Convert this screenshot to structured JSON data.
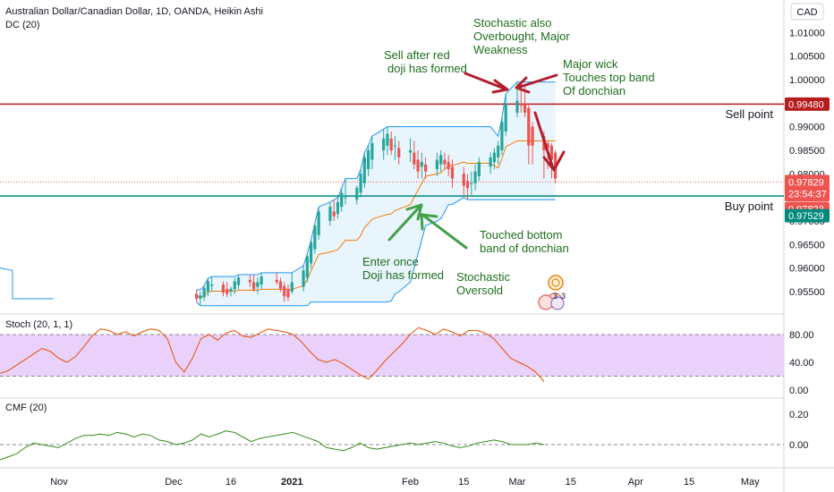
{
  "header": {
    "title": "Australian Dollar/Canadian Dollar, 1D, OANDA, Heikin Ashi",
    "indicator": "DC (20)",
    "currency": "CAD",
    "stoch_title": "Stoch (20, 1, 1)",
    "cmf_title": "CMF (20)"
  },
  "annotations": {
    "stoch_ob_line1": "Stochastic also",
    "stoch_ob_line2": "Overbought, Major",
    "stoch_ob_line3": "Weakness",
    "sell_doji_line1": "Sell after red",
    "sell_doji_line2": "doji has formed",
    "wick_line1": "Major wick",
    "wick_line2": "Touches top band",
    "wick_line3": "Of donchian",
    "sell_point": "Sell point",
    "buy_point": "Buy point",
    "touched_line1": "Touched bottom",
    "touched_line2": "band of donchian",
    "enter_line1": "Enter once",
    "enter_line2": "Doji has formed",
    "oversold_line1": "Stochastic",
    "oversold_line2": "Oversold"
  },
  "event_badges": {
    "count_a": "3",
    "count_b": "3"
  },
  "colors": {
    "up": "#26a69a",
    "down": "#ef5350",
    "sell_line": "#b71c1c",
    "buy_line": "#00897b",
    "donchian_band": "#2196f3",
    "donchian_basis": "#f57c00",
    "donchian_fill": "#e3f2fd",
    "stoch_line": "#e65100",
    "stoch_fill": "#ead1fb",
    "cmf_line": "#3a8a1a",
    "annotation_green": "#1e6e1e",
    "arrow_red": "#b0202f",
    "arrow_green": "#43a047"
  },
  "chart_data": [
    {
      "type": "candlestick",
      "panel": "price",
      "y_ticks": [
        "0.95500",
        "0.96000",
        "0.96500",
        "0.97000",
        "0.97500",
        "0.98000",
        "0.98500",
        "0.99000",
        "0.99500",
        "1.00000",
        "1.00500",
        "1.01000"
      ],
      "ylim": [
        0.9505,
        1.0145
      ],
      "x_ticks": [
        "Nov",
        "Dec",
        "16",
        "2021",
        "Feb",
        "15",
        "Mar",
        "15",
        "Apr",
        "15",
        "May"
      ],
      "price_tags": {
        "sell_level": "0.99480",
        "last_price": "0.97829",
        "countdown": "23:54:37",
        "dc_lower": "0.97823",
        "buy_level": "0.97529"
      },
      "levels": {
        "sell": 0.9948,
        "buy": 0.97529,
        "last": 0.97829
      },
      "candles": [
        {
          "date": "2020-12-07",
          "o": 0.9545,
          "h": 0.9554,
          "l": 0.9528,
          "c": 0.9535
        },
        {
          "date": "2020-12-08",
          "o": 0.9535,
          "h": 0.955,
          "l": 0.952,
          "c": 0.9542
        },
        {
          "date": "2020-12-09",
          "o": 0.9538,
          "h": 0.9562,
          "l": 0.953,
          "c": 0.9558
        },
        {
          "date": "2020-12-10",
          "o": 0.955,
          "h": 0.9578,
          "l": 0.954,
          "c": 0.9572
        },
        {
          "date": "2020-12-11",
          "o": 0.9562,
          "h": 0.9582,
          "l": 0.955,
          "c": 0.9565
        },
        {
          "date": "2020-12-14",
          "o": 0.9565,
          "h": 0.9572,
          "l": 0.954,
          "c": 0.9548
        },
        {
          "date": "2020-12-15",
          "o": 0.9556,
          "h": 0.957,
          "l": 0.9538,
          "c": 0.9545
        },
        {
          "date": "2020-12-16",
          "o": 0.955,
          "h": 0.956,
          "l": 0.954,
          "c": 0.9556
        },
        {
          "date": "2020-12-17",
          "o": 0.9555,
          "h": 0.958,
          "l": 0.9545,
          "c": 0.9572
        },
        {
          "date": "2020-12-18",
          "o": 0.9564,
          "h": 0.9586,
          "l": 0.9555,
          "c": 0.958
        },
        {
          "date": "2020-12-21",
          "o": 0.9575,
          "h": 0.9585,
          "l": 0.956,
          "c": 0.957
        },
        {
          "date": "2020-12-22",
          "o": 0.957,
          "h": 0.9585,
          "l": 0.955,
          "c": 0.9555
        },
        {
          "date": "2020-12-23",
          "o": 0.956,
          "h": 0.958,
          "l": 0.9545,
          "c": 0.957
        },
        {
          "date": "2020-12-24",
          "o": 0.9565,
          "h": 0.959,
          "l": 0.9555,
          "c": 0.9582
        },
        {
          "date": "2020-12-28",
          "o": 0.9575,
          "h": 0.959,
          "l": 0.9565,
          "c": 0.957
        },
        {
          "date": "2020-12-29",
          "o": 0.9572,
          "h": 0.958,
          "l": 0.955,
          "c": 0.9556
        },
        {
          "date": "2020-12-30",
          "o": 0.9562,
          "h": 0.957,
          "l": 0.9528,
          "c": 0.954
        },
        {
          "date": "2020-12-31",
          "o": 0.9555,
          "h": 0.9565,
          "l": 0.953,
          "c": 0.9538
        },
        {
          "date": "2021-01-01",
          "o": 0.955,
          "h": 0.959,
          "l": 0.9545,
          "c": 0.957
        },
        {
          "date": "2021-01-04",
          "o": 0.956,
          "h": 0.9605,
          "l": 0.955,
          "c": 0.9595
        },
        {
          "date": "2021-01-05",
          "o": 0.958,
          "h": 0.963,
          "l": 0.957,
          "c": 0.9625
        },
        {
          "date": "2021-01-06",
          "o": 0.961,
          "h": 0.966,
          "l": 0.96,
          "c": 0.9655
        },
        {
          "date": "2021-01-07",
          "o": 0.964,
          "h": 0.9695,
          "l": 0.963,
          "c": 0.969
        },
        {
          "date": "2021-01-08",
          "o": 0.967,
          "h": 0.973,
          "l": 0.966,
          "c": 0.972
        },
        {
          "date": "2021-01-11",
          "o": 0.97,
          "h": 0.974,
          "l": 0.969,
          "c": 0.973
        },
        {
          "date": "2021-01-12",
          "o": 0.972,
          "h": 0.9745,
          "l": 0.97,
          "c": 0.971
        },
        {
          "date": "2021-01-13",
          "o": 0.9715,
          "h": 0.975,
          "l": 0.9705,
          "c": 0.974
        },
        {
          "date": "2021-01-14",
          "o": 0.973,
          "h": 0.977,
          "l": 0.972,
          "c": 0.976
        },
        {
          "date": "2021-01-15",
          "o": 0.975,
          "h": 0.979,
          "l": 0.9735,
          "c": 0.975
        },
        {
          "date": "2021-01-18",
          "o": 0.9745,
          "h": 0.9775,
          "l": 0.9735,
          "c": 0.977
        },
        {
          "date": "2021-01-19",
          "o": 0.976,
          "h": 0.981,
          "l": 0.975,
          "c": 0.98
        },
        {
          "date": "2021-01-20",
          "o": 0.978,
          "h": 0.9845,
          "l": 0.977,
          "c": 0.9835
        },
        {
          "date": "2021-01-21",
          "o": 0.981,
          "h": 0.986,
          "l": 0.9795,
          "c": 0.985
        },
        {
          "date": "2021-01-22",
          "o": 0.983,
          "h": 0.988,
          "l": 0.981,
          "c": 0.9865
        },
        {
          "date": "2021-01-25",
          "o": 0.985,
          "h": 0.9895,
          "l": 0.983,
          "c": 0.9875
        },
        {
          "date": "2021-01-26",
          "o": 0.986,
          "h": 0.99,
          "l": 0.984,
          "c": 0.9885
        },
        {
          "date": "2021-01-27",
          "o": 0.9875,
          "h": 0.989,
          "l": 0.984,
          "c": 0.985
        },
        {
          "date": "2021-01-28",
          "o": 0.986,
          "h": 0.988,
          "l": 0.983,
          "c": 0.986
        },
        {
          "date": "2021-01-29",
          "o": 0.9855,
          "h": 0.987,
          "l": 0.982,
          "c": 0.9835
        },
        {
          "date": "2021-02-01",
          "o": 0.9845,
          "h": 0.9875,
          "l": 0.9825,
          "c": 0.985
        },
        {
          "date": "2021-02-02",
          "o": 0.9845,
          "h": 0.987,
          "l": 0.981,
          "c": 0.982
        },
        {
          "date": "2021-02-03",
          "o": 0.983,
          "h": 0.985,
          "l": 0.979,
          "c": 0.9805
        },
        {
          "date": "2021-02-04",
          "o": 0.9815,
          "h": 0.9845,
          "l": 0.979,
          "c": 0.9825
        },
        {
          "date": "2021-02-05",
          "o": 0.982,
          "h": 0.9835,
          "l": 0.979,
          "c": 0.9805
        },
        {
          "date": "2021-02-08",
          "o": 0.981,
          "h": 0.9845,
          "l": 0.9795,
          "c": 0.983
        },
        {
          "date": "2021-02-09",
          "o": 0.982,
          "h": 0.985,
          "l": 0.9805,
          "c": 0.984
        },
        {
          "date": "2021-02-10",
          "o": 0.983,
          "h": 0.9845,
          "l": 0.981,
          "c": 0.982
        },
        {
          "date": "2021-02-11",
          "o": 0.9825,
          "h": 0.984,
          "l": 0.9795,
          "c": 0.981
        },
        {
          "date": "2021-02-12",
          "o": 0.9815,
          "h": 0.983,
          "l": 0.977,
          "c": 0.979
        },
        {
          "date": "2021-02-15",
          "o": 0.98,
          "h": 0.9815,
          "l": 0.9755,
          "c": 0.9775
        },
        {
          "date": "2021-02-16",
          "o": 0.9785,
          "h": 0.98,
          "l": 0.9745,
          "c": 0.977
        },
        {
          "date": "2021-02-17",
          "o": 0.978,
          "h": 0.9805,
          "l": 0.9755,
          "c": 0.978
        },
        {
          "date": "2021-02-18",
          "o": 0.978,
          "h": 0.982,
          "l": 0.9765,
          "c": 0.9805
        },
        {
          "date": "2021-02-19",
          "o": 0.9795,
          "h": 0.9835,
          "l": 0.9785,
          "c": 0.9825
        },
        {
          "date": "2021-02-22",
          "o": 0.9815,
          "h": 0.9845,
          "l": 0.98,
          "c": 0.9835
        },
        {
          "date": "2021-02-23",
          "o": 0.9825,
          "h": 0.9855,
          "l": 0.981,
          "c": 0.9845
        },
        {
          "date": "2021-02-24",
          "o": 0.9835,
          "h": 0.987,
          "l": 0.982,
          "c": 0.986
        },
        {
          "date": "2021-02-25",
          "o": 0.985,
          "h": 0.992,
          "l": 0.984,
          "c": 0.991
        },
        {
          "date": "2021-02-26",
          "o": 0.989,
          "h": 0.997,
          "l": 0.988,
          "c": 0.995
        },
        {
          "date": "2021-03-01",
          "o": 0.993,
          "h": 0.9995,
          "l": 0.992,
          "c": 0.9955
        },
        {
          "date": "2021-03-02",
          "o": 0.995,
          "h": 0.9995,
          "l": 0.993,
          "c": 0.9945
        },
        {
          "date": "2021-03-03",
          "o": 0.9948,
          "h": 0.999,
          "l": 0.992,
          "c": 0.993
        },
        {
          "date": "2021-03-04",
          "o": 0.994,
          "h": 0.995,
          "l": 0.982,
          "c": 0.986
        },
        {
          "date": "2021-03-05",
          "o": 0.99,
          "h": 0.991,
          "l": 0.982,
          "c": 0.986
        },
        {
          "date": "2021-03-08",
          "o": 0.988,
          "h": 0.989,
          "l": 0.979,
          "c": 0.985
        },
        {
          "date": "2021-03-09",
          "o": 0.9865,
          "h": 0.987,
          "l": 0.981,
          "c": 0.9855
        },
        {
          "date": "2021-03-10",
          "o": 0.986,
          "h": 0.9865,
          "l": 0.979,
          "c": 0.983
        },
        {
          "date": "2021-03-11",
          "o": 0.9845,
          "h": 0.985,
          "l": 0.978,
          "c": 0.979
        }
      ]
    },
    {
      "type": "line",
      "panel": "stochastic",
      "y_ticks": [
        "0.00",
        "40.00",
        "80.00"
      ],
      "ylim": [
        0,
        100
      ],
      "band": [
        20,
        80
      ],
      "series": [
        {
          "values": [
            24,
            28,
            36,
            44,
            52,
            60,
            56,
            46,
            40,
            48,
            62,
            78,
            88,
            86,
            80,
            84,
            78,
            84,
            88,
            86,
            74,
            40,
            26,
            46,
            74,
            80,
            72,
            82,
            86,
            78,
            76,
            82,
            88,
            86,
            84,
            80,
            70,
            56,
            44,
            40,
            44,
            38,
            30,
            22,
            16,
            28,
            42,
            54,
            66,
            80,
            90,
            86,
            80,
            88,
            84,
            78,
            86,
            86,
            82,
            74,
            60,
            46,
            40,
            34,
            26,
            12
          ]
        }
      ]
    },
    {
      "type": "line",
      "panel": "cmf",
      "y_ticks": [
        "0.00",
        "0.20"
      ],
      "ylim": [
        -0.12,
        0.28
      ],
      "series": [
        {
          "values": [
            -0.1,
            -0.08,
            -0.06,
            -0.02,
            0.01,
            0.0,
            -0.01,
            -0.02,
            0.01,
            0.04,
            0.06,
            0.06,
            0.07,
            0.06,
            0.08,
            0.07,
            0.05,
            0.07,
            0.06,
            0.03,
            0.02,
            0.0,
            0.01,
            0.03,
            0.07,
            0.05,
            0.07,
            0.09,
            0.08,
            0.05,
            0.02,
            0.04,
            0.05,
            0.06,
            0.07,
            0.08,
            0.06,
            0.04,
            0.02,
            -0.02,
            -0.03,
            -0.04,
            -0.02,
            0.01,
            -0.02,
            -0.03,
            -0.02,
            -0.01,
            0.0,
            0.01,
            0.0,
            0.01,
            0.02,
            0.01,
            -0.01,
            -0.02,
            -0.01,
            0.01,
            0.02,
            0.03,
            0.02,
            0.0,
            0.0,
            0.0,
            0.01,
            0.0
          ]
        }
      ]
    }
  ]
}
